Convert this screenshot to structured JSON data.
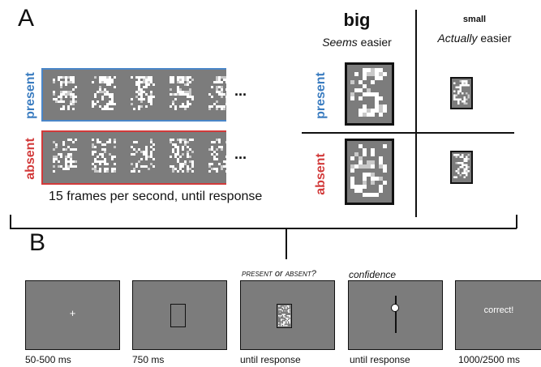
{
  "panel_a": {
    "label": "A",
    "rows": {
      "present": {
        "label": "present",
        "color": "#3a7cc0"
      },
      "absent": {
        "label": "absent",
        "color": "#d23a3a"
      }
    },
    "ellipsis": "...",
    "frame_rate_caption": "15 frames per second, until response",
    "columns": {
      "big": {
        "title": "big",
        "sub_italic": "Seems",
        "sub_rest": " easier"
      },
      "small": {
        "title": "small",
        "sub_italic": "Actually",
        "sub_rest": " easier"
      }
    }
  },
  "panel_b": {
    "label": "B",
    "screens": [
      {
        "id": "fixation",
        "content_glyph": "+",
        "caption": "50-500 ms"
      },
      {
        "id": "placeholder",
        "caption": "750 ms"
      },
      {
        "id": "stimulus",
        "caption": "until response",
        "question_word1": "present",
        "question_or": " or ",
        "question_word2": "absent",
        "question_end": "?"
      },
      {
        "id": "confidence",
        "caption": "until response",
        "header": "confidence"
      },
      {
        "id": "feedback",
        "content_text": "correct!",
        "caption": "1000/2500 ms"
      }
    ]
  },
  "colors": {
    "screen_gray": "#7c7c7c",
    "present_blue": "#3a7cc0",
    "absent_red": "#d23a3a"
  }
}
